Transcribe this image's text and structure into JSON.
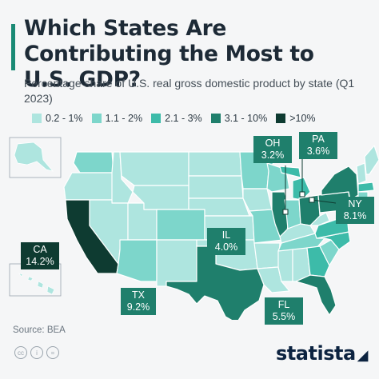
{
  "title": "Which States Are Contributing the Most to U.S. GDP?",
  "subtitle": "Percentage share of U.S. real gross domestic product by state (Q1 2023)",
  "legend": [
    {
      "label": "0.2 - 1%",
      "color": "#aee5df"
    },
    {
      "label": "1.1 - 2%",
      "color": "#7dd6cb"
    },
    {
      "label": "2.1 - 3%",
      "color": "#3dbba9"
    },
    {
      "label": "3.1 - 10%",
      "color": "#1f7f6c"
    },
    {
      "label": ">10%",
      "color": "#0e3b31"
    }
  ],
  "callouts": [
    {
      "state": "CA",
      "share": "14.2%",
      "color": "#0e3b31"
    },
    {
      "state": "TX",
      "share": "9.2%",
      "color": "#1f7f6c"
    },
    {
      "state": "IL",
      "share": "4.0%",
      "color": "#1f7f6c"
    },
    {
      "state": "FL",
      "share": "5.5%",
      "color": "#1f7f6c"
    },
    {
      "state": "OH",
      "share": "3.2%",
      "color": "#1f7f6c"
    },
    {
      "state": "PA",
      "share": "3.6%",
      "color": "#1f7f6c"
    },
    {
      "state": "NY",
      "share": "8.1%",
      "color": "#1f7f6c"
    }
  ],
  "source": "Source: BEA",
  "license_icons": [
    "cc-icon",
    "by-icon",
    "nd-icon"
  ],
  "brand": "statista"
}
